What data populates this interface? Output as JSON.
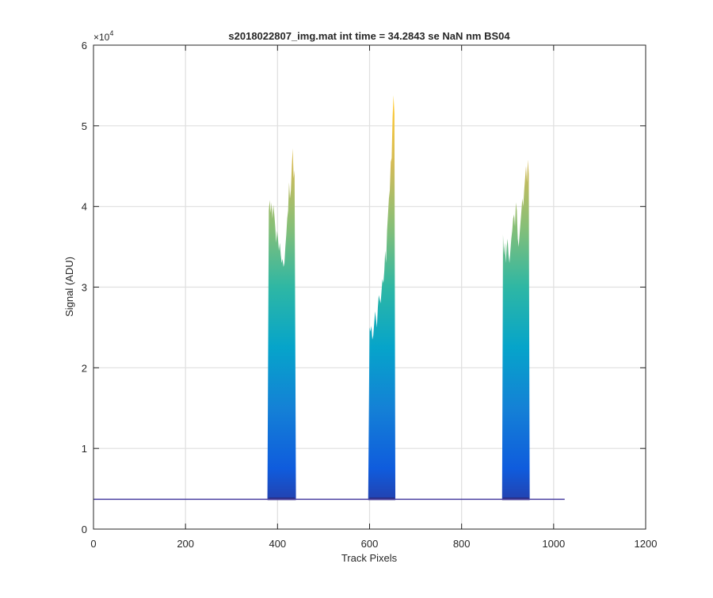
{
  "chart_data": {
    "type": "area",
    "title": "s2018022807_img.mat int time = 34.2843 se  NaN nm BS04",
    "xlabel": "Track Pixels",
    "ylabel": "Signal (ADU)",
    "xlim": [
      0,
      1200
    ],
    "ylim": [
      0,
      6
    ],
    "y_exponent_label": "×10",
    "y_exponent_power": "4",
    "grid": true,
    "x_ticks": [
      "0",
      "200",
      "400",
      "600",
      "800",
      "1000",
      "1200"
    ],
    "y_ticks": [
      "0",
      "1",
      "2",
      "3",
      "4",
      "5",
      "6"
    ],
    "baseline": 0.37,
    "data_end_x": 1024,
    "colormap": [
      "#352a87",
      "#0f5cdd",
      "#1481d6",
      "#06a4ca",
      "#2eb7a4",
      "#87bf77",
      "#d1bb59",
      "#fec832",
      "#f9fb0e"
    ],
    "peaks": [
      {
        "x": [
          378,
          381,
          383,
          385,
          387,
          389,
          391,
          393,
          395,
          397,
          399,
          401,
          403,
          405,
          407,
          409,
          411,
          413,
          415,
          417,
          419,
          421,
          423,
          425,
          427,
          429,
          431,
          433,
          435,
          437,
          440
        ],
        "y": [
          0.38,
          3.95,
          4.08,
          3.92,
          4.05,
          3.85,
          4.02,
          3.9,
          3.75,
          3.55,
          3.7,
          3.6,
          3.45,
          3.55,
          3.4,
          3.3,
          3.35,
          3.25,
          3.3,
          3.5,
          3.65,
          3.85,
          3.95,
          4.3,
          4.1,
          4.2,
          4.5,
          4.72,
          4.35,
          4.45,
          0.38
        ]
      },
      {
        "x": [
          597,
          600,
          602,
          604,
          606,
          608,
          610,
          612,
          614,
          616,
          618,
          620,
          622,
          624,
          626,
          628,
          630,
          632,
          634,
          636,
          638,
          640,
          642,
          644,
          646,
          648,
          650,
          652,
          654,
          656
        ],
        "y": [
          0.38,
          2.5,
          2.45,
          2.52,
          2.35,
          2.4,
          2.55,
          2.7,
          2.6,
          2.5,
          2.75,
          2.9,
          2.85,
          2.8,
          2.95,
          3.1,
          3.05,
          3.2,
          3.45,
          3.3,
          3.7,
          3.9,
          4.1,
          4.2,
          4.55,
          4.6,
          5.1,
          5.38,
          5.15,
          0.38
        ]
      },
      {
        "x": [
          888,
          890,
          892,
          894,
          896,
          898,
          900,
          902,
          904,
          906,
          908,
          910,
          912,
          914,
          916,
          918,
          920,
          922,
          924,
          926,
          928,
          930,
          932,
          934,
          936,
          938,
          940,
          942,
          944,
          946,
          948
        ],
        "y": [
          0.38,
          3.65,
          3.4,
          3.55,
          3.3,
          3.5,
          3.6,
          3.4,
          3.3,
          3.45,
          3.6,
          3.7,
          3.85,
          3.9,
          3.75,
          4.05,
          3.95,
          3.6,
          3.5,
          3.65,
          3.8,
          3.95,
          4.1,
          4.0,
          4.2,
          4.35,
          4.5,
          4.3,
          4.58,
          4.4,
          0.38
        ]
      }
    ]
  }
}
